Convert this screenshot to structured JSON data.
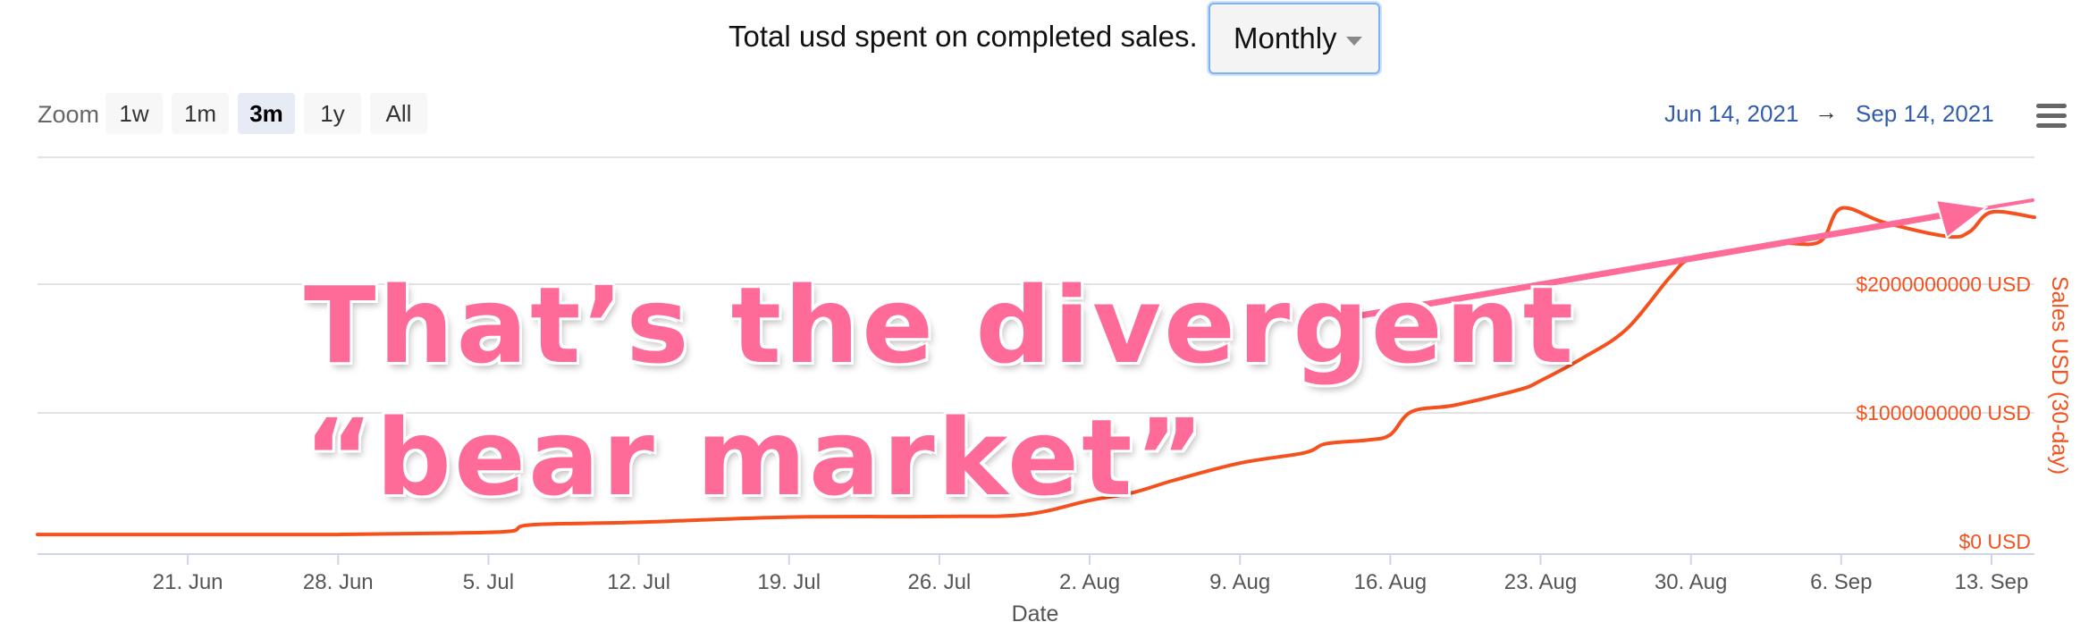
{
  "header": {
    "title": "Total usd spent on completed sales.",
    "period_select": "Monthly"
  },
  "zoom": {
    "label": "Zoom",
    "buttons": [
      "1w",
      "1m",
      "3m",
      "1y",
      "All"
    ],
    "active": "3m"
  },
  "range": {
    "from": "Jun 14, 2021",
    "arrow": "→",
    "to": "Sep 14, 2021"
  },
  "annotation": {
    "line1": "That’s the divergent",
    "line2": "“bear market”",
    "color": "#ff6b98"
  },
  "chart_data": {
    "type": "line",
    "xlabel": "Date",
    "ylabel": "Sales USD (30-day)",
    "x_ticks": [
      "21. Jun",
      "28. Jun",
      "5. Jul",
      "12. Jul",
      "19. Jul",
      "26. Jul",
      "2. Aug",
      "9. Aug",
      "16. Aug",
      "23. Aug",
      "30. Aug",
      "6. Sep",
      "13. Sep"
    ],
    "y_ticks": [
      "$0 USD",
      "$1000000000 USD",
      "$2000000000 USD"
    ],
    "ylim": [
      0,
      3000000000
    ],
    "line_color": "#f4511e",
    "series": [
      {
        "x": [
          "2021-06-14",
          "2021-06-21",
          "2021-06-28",
          "2021-07-03",
          "2021-07-06",
          "2021-07-07",
          "2021-07-12",
          "2021-07-19",
          "2021-07-26",
          "2021-07-30",
          "2021-08-02",
          "2021-08-04",
          "2021-08-06",
          "2021-08-09",
          "2021-08-12",
          "2021-08-13",
          "2021-08-15",
          "2021-08-16",
          "2021-08-17",
          "2021-08-19",
          "2021-08-22",
          "2021-08-23",
          "2021-08-25",
          "2021-08-27",
          "2021-08-29",
          "2021-08-30",
          "2021-09-01",
          "2021-09-03",
          "2021-09-05",
          "2021-09-06",
          "2021-09-08",
          "2021-09-11",
          "2021-09-12",
          "2021-09-13",
          "2021-09-15"
        ],
        "values": [
          55000000,
          55000000,
          55000000,
          65000000,
          80000000,
          130000000,
          150000000,
          190000000,
          195000000,
          210000000,
          320000000,
          380000000,
          480000000,
          610000000,
          690000000,
          760000000,
          790000000,
          830000000,
          1010000000,
          1060000000,
          1180000000,
          1250000000,
          1430000000,
          1650000000,
          2050000000,
          2200000000,
          2260000000,
          2320000000,
          2330000000,
          2590000000,
          2480000000,
          2370000000,
          2410000000,
          2560000000,
          2520000000
        ]
      }
    ]
  }
}
